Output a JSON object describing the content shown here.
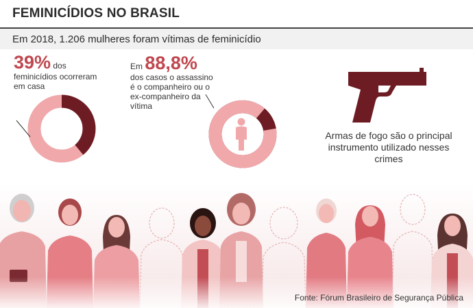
{
  "header": {
    "title": "FEMINICÍDIOS NO BRASIL",
    "subtitle": "Em 2018, 1.206 mulheres foram vítimas de feminicídio"
  },
  "stat_home": {
    "value": "39%",
    "text_after": " dos",
    "text_rest": "feminicídios ocorreram em casa",
    "fraction": 0.39
  },
  "stat_partner": {
    "prefix": "Em ",
    "value": "88,8%",
    "text": "dos casos o assassino é o companheiro ou o ex-companheiro da vítima",
    "fraction": 0.888
  },
  "firearm": {
    "caption": "Armas de fogo são o principal instrumento utilizado nesses crimes",
    "icon": "pistol-icon"
  },
  "source": "Fonte: Fórum Brasileiro de Segurança Pública",
  "colors": {
    "dark": "#6e1c24",
    "light": "#f0a8ab",
    "accent": "#c0474f",
    "figure": "#e9a3a6"
  }
}
